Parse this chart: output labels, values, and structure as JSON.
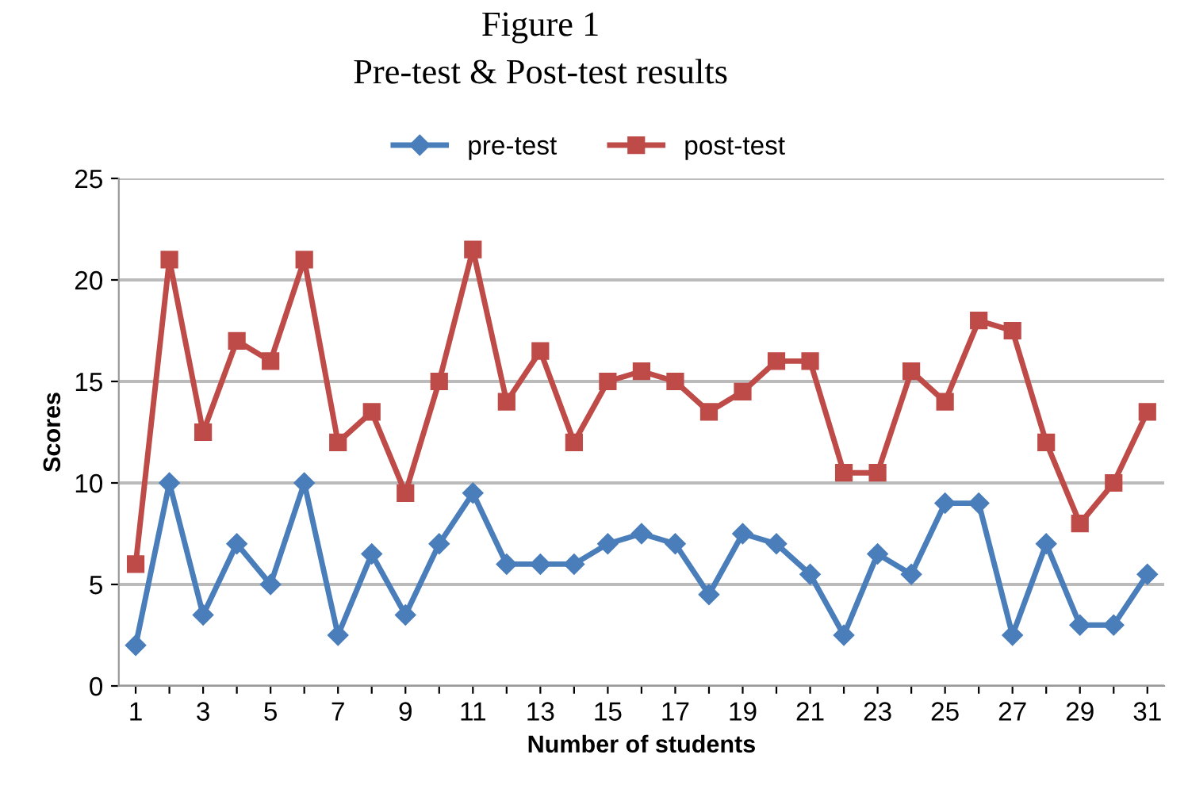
{
  "chart_data": {
    "type": "line",
    "title": "Figure 1",
    "subtitle": "Pre-test & Post-test results",
    "xlabel": "Number of students",
    "ylabel": "Scores",
    "categories": [
      "1",
      null,
      "3",
      null,
      "5",
      null,
      "7",
      null,
      "9",
      null,
      "11",
      null,
      "13",
      null,
      "15",
      null,
      "17",
      null,
      "19",
      null,
      "21",
      null,
      "23",
      null,
      "25",
      null,
      "27",
      null,
      "29",
      null,
      "31"
    ],
    "series": [
      {
        "name": "pre-test",
        "color": "#4a7ebb",
        "marker": "diamond",
        "values": [
          2,
          10,
          3.5,
          7,
          5,
          10,
          2.5,
          6.5,
          3.5,
          7,
          9.5,
          6,
          6,
          6,
          7,
          7.5,
          7,
          4.5,
          7.5,
          7,
          5.5,
          2.5,
          6.5,
          5.5,
          9,
          9,
          2.5,
          7,
          3,
          3,
          5.5
        ]
      },
      {
        "name": "post-test",
        "color": "#be4b48",
        "marker": "square",
        "values": [
          6,
          21,
          12.5,
          17,
          16,
          21,
          12,
          13.5,
          9.5,
          15,
          21.5,
          14,
          16.5,
          12,
          15,
          15.5,
          15,
          13.5,
          14.5,
          16,
          16,
          10.5,
          10.5,
          15.5,
          14,
          18,
          17.5,
          12,
          8,
          10,
          13.5
        ]
      }
    ],
    "ylim": [
      0,
      25
    ],
    "yticks": [
      0,
      5,
      10,
      15,
      20,
      25
    ],
    "grid": "y",
    "legend": "top",
    "line_style": "solid"
  }
}
